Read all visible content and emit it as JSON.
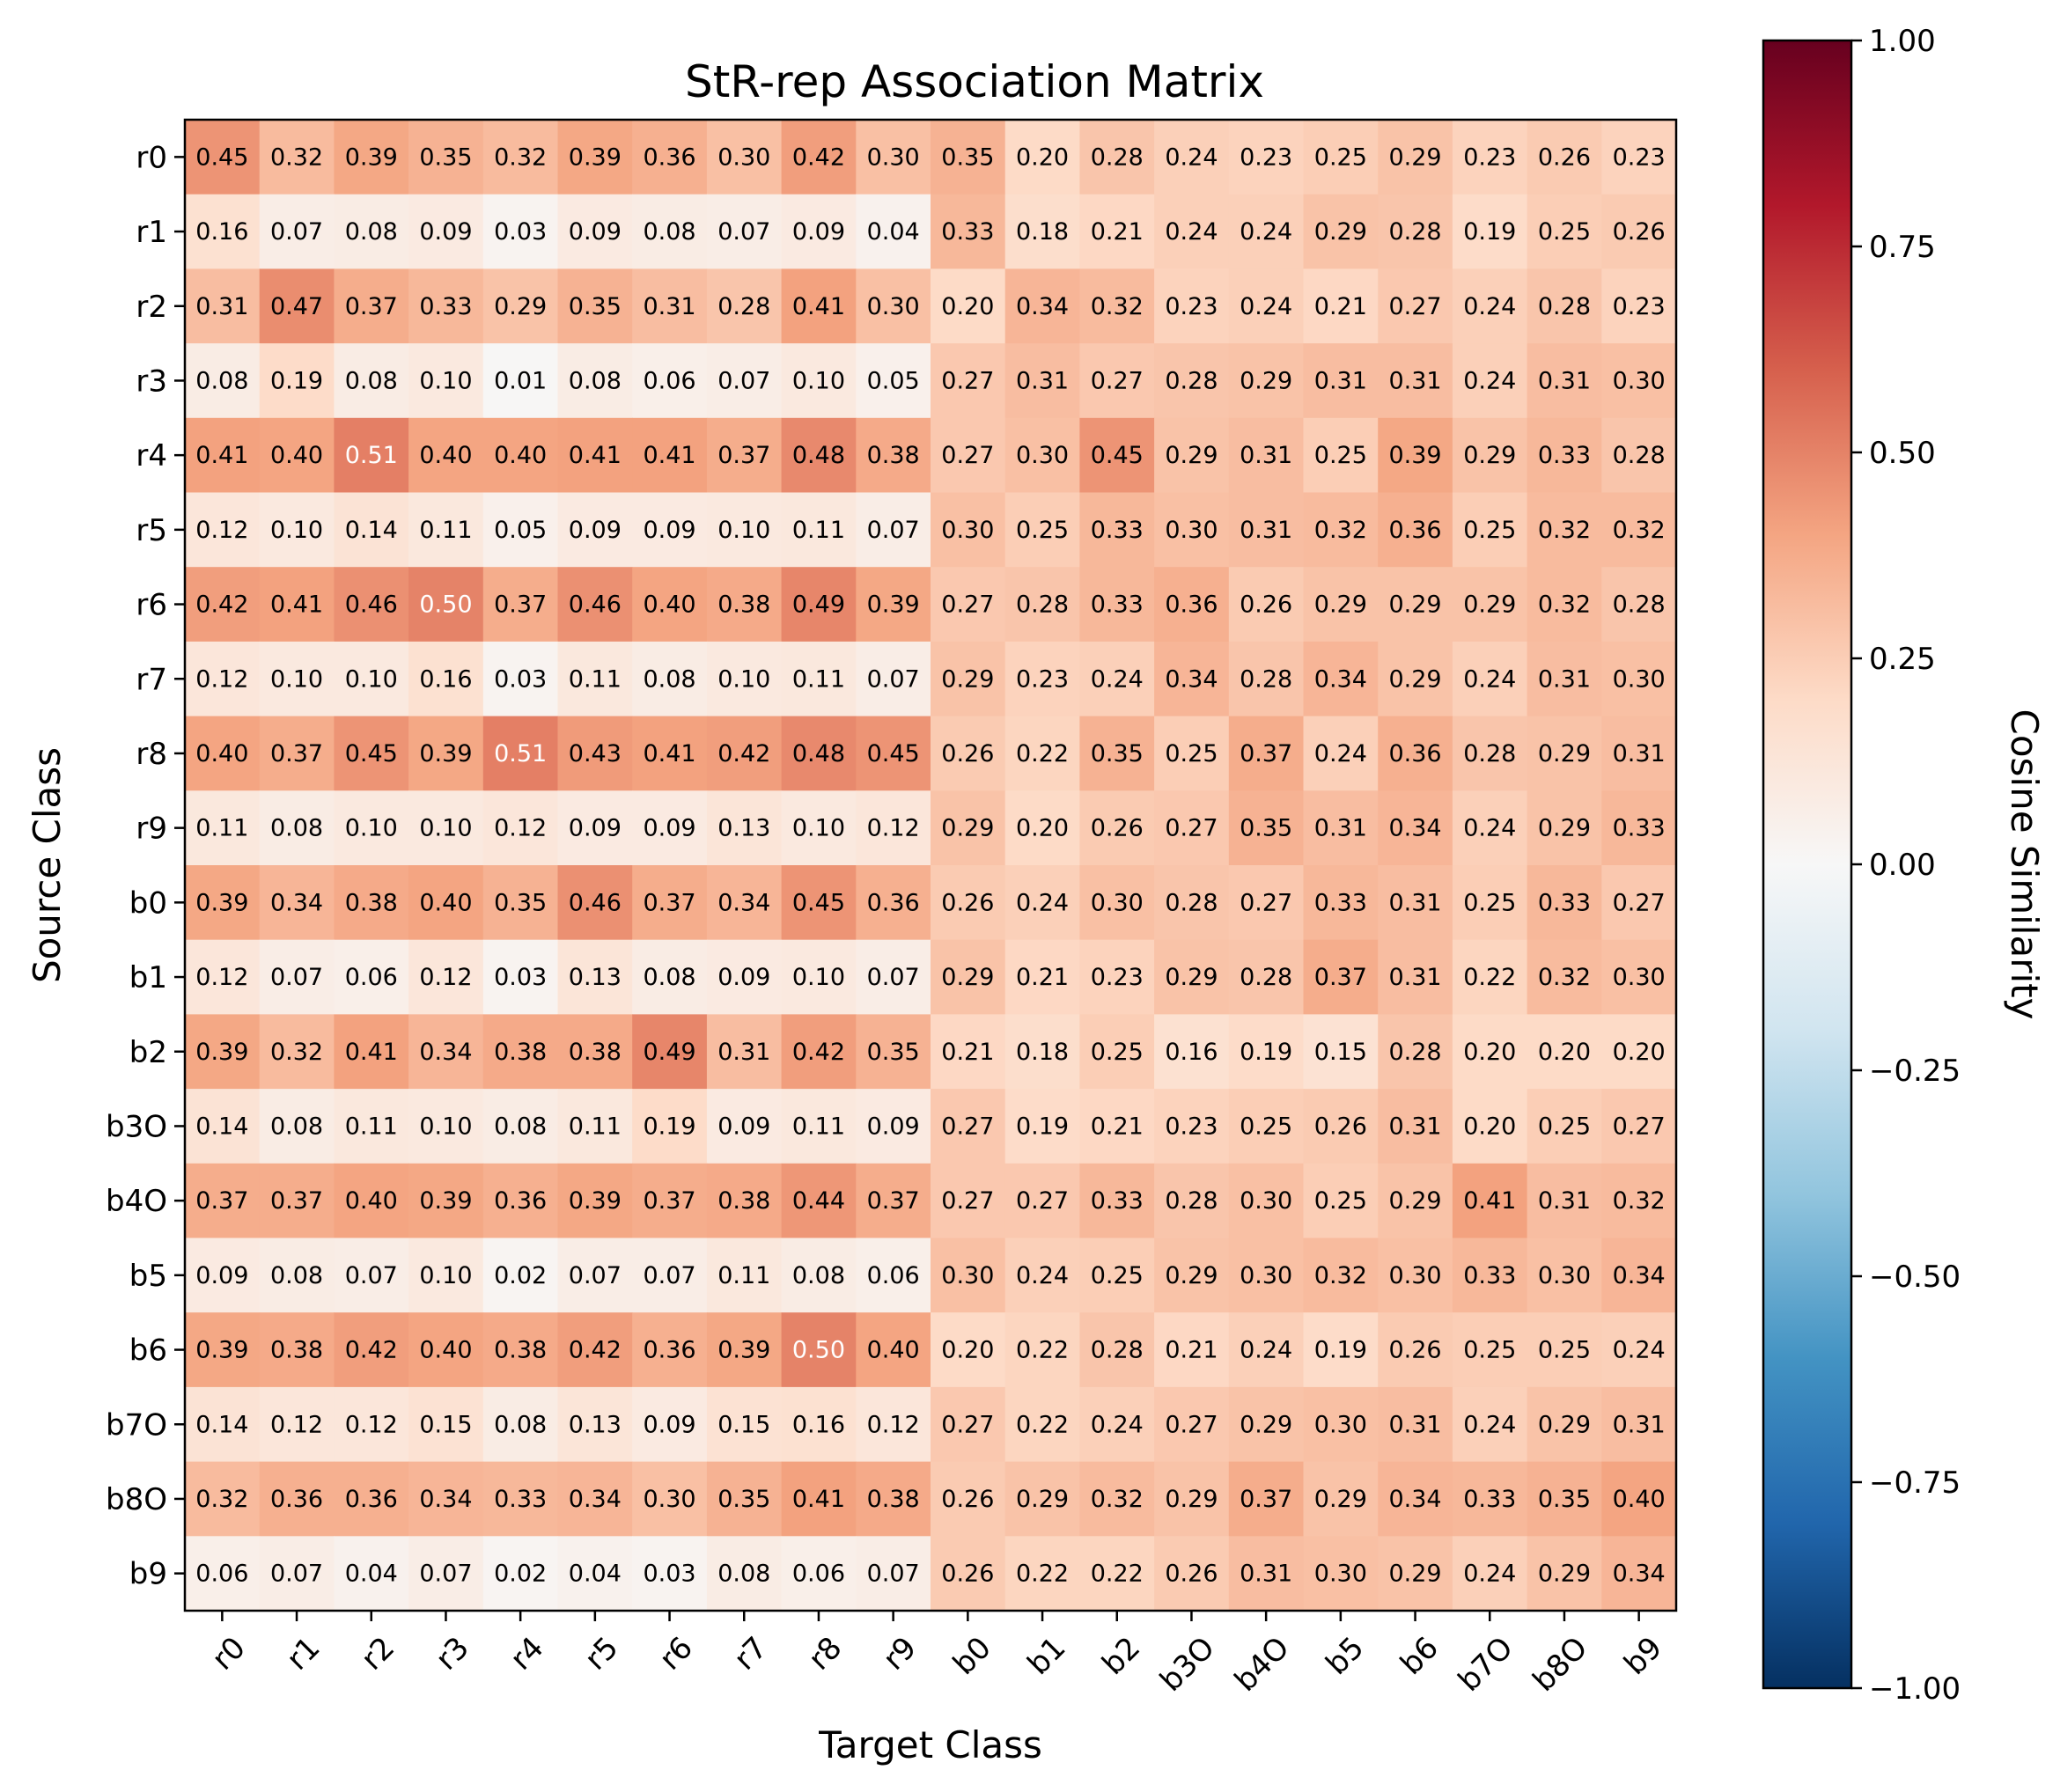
{
  "chart_data": {
    "type": "heatmap",
    "title": "StR-rep Association Matrix",
    "xlabel": "Target Class",
    "ylabel": "Source Class",
    "colorbar_label": "Cosine Similarity",
    "colormap": "RdBu_r",
    "vmin": -1.0,
    "vmax": 1.0,
    "colorbar_ticks": [
      "1.00",
      "0.75",
      "0.50",
      "0.25",
      "0.00",
      "−0.25",
      "−0.50",
      "−0.75",
      "−1.00"
    ],
    "colorbar_tick_values": [
      1.0,
      0.75,
      0.5,
      0.25,
      0.0,
      -0.25,
      -0.5,
      -0.75,
      -1.0
    ],
    "x_categories": [
      "r0",
      "r1",
      "r2",
      "r3",
      "r4",
      "r5",
      "r6",
      "r7",
      "r8",
      "r9",
      "b0",
      "b1",
      "b2",
      "b3O",
      "b4O",
      "b5",
      "b6",
      "b7O",
      "b8O",
      "b9"
    ],
    "y_categories": [
      "r0",
      "r1",
      "r2",
      "r3",
      "r4",
      "r5",
      "r6",
      "r7",
      "r8",
      "r9",
      "b0",
      "b1",
      "b2",
      "b3O",
      "b4O",
      "b5",
      "b6",
      "b7O",
      "b8O",
      "b9"
    ],
    "values": [
      [
        0.45,
        0.32,
        0.39,
        0.35,
        0.32,
        0.39,
        0.36,
        0.3,
        0.42,
        0.3,
        0.35,
        0.2,
        0.28,
        0.24,
        0.23,
        0.25,
        0.29,
        0.23,
        0.26,
        0.23
      ],
      [
        0.16,
        0.07,
        0.08,
        0.09,
        0.03,
        0.09,
        0.08,
        0.07,
        0.09,
        0.04,
        0.33,
        0.18,
        0.21,
        0.24,
        0.24,
        0.29,
        0.28,
        0.19,
        0.25,
        0.26
      ],
      [
        0.31,
        0.47,
        0.37,
        0.33,
        0.29,
        0.35,
        0.31,
        0.28,
        0.41,
        0.3,
        0.2,
        0.34,
        0.32,
        0.23,
        0.24,
        0.21,
        0.27,
        0.24,
        0.28,
        0.23
      ],
      [
        0.08,
        0.19,
        0.08,
        0.1,
        0.01,
        0.08,
        0.06,
        0.07,
        0.1,
        0.05,
        0.27,
        0.31,
        0.27,
        0.28,
        0.29,
        0.31,
        0.31,
        0.24,
        0.31,
        0.3
      ],
      [
        0.41,
        0.4,
        0.51,
        0.4,
        0.4,
        0.41,
        0.41,
        0.37,
        0.48,
        0.38,
        0.27,
        0.3,
        0.45,
        0.29,
        0.31,
        0.25,
        0.39,
        0.29,
        0.33,
        0.28
      ],
      [
        0.12,
        0.1,
        0.14,
        0.11,
        0.05,
        0.09,
        0.09,
        0.1,
        0.11,
        0.07,
        0.3,
        0.25,
        0.33,
        0.3,
        0.31,
        0.32,
        0.36,
        0.25,
        0.32,
        0.32
      ],
      [
        0.42,
        0.41,
        0.46,
        0.5,
        0.37,
        0.46,
        0.4,
        0.38,
        0.49,
        0.39,
        0.27,
        0.28,
        0.33,
        0.36,
        0.26,
        0.29,
        0.29,
        0.29,
        0.32,
        0.28
      ],
      [
        0.12,
        0.1,
        0.1,
        0.16,
        0.03,
        0.11,
        0.08,
        0.1,
        0.11,
        0.07,
        0.29,
        0.23,
        0.24,
        0.34,
        0.28,
        0.34,
        0.29,
        0.24,
        0.31,
        0.3
      ],
      [
        0.4,
        0.37,
        0.45,
        0.39,
        0.51,
        0.43,
        0.41,
        0.42,
        0.48,
        0.45,
        0.26,
        0.22,
        0.35,
        0.25,
        0.37,
        0.24,
        0.36,
        0.28,
        0.29,
        0.31
      ],
      [
        0.11,
        0.08,
        0.1,
        0.1,
        0.12,
        0.09,
        0.09,
        0.13,
        0.1,
        0.12,
        0.29,
        0.2,
        0.26,
        0.27,
        0.35,
        0.31,
        0.34,
        0.24,
        0.29,
        0.33
      ],
      [
        0.39,
        0.34,
        0.38,
        0.4,
        0.35,
        0.46,
        0.37,
        0.34,
        0.45,
        0.36,
        0.26,
        0.24,
        0.3,
        0.28,
        0.27,
        0.33,
        0.31,
        0.25,
        0.33,
        0.27
      ],
      [
        0.12,
        0.07,
        0.06,
        0.12,
        0.03,
        0.13,
        0.08,
        0.09,
        0.1,
        0.07,
        0.29,
        0.21,
        0.23,
        0.29,
        0.28,
        0.37,
        0.31,
        0.22,
        0.32,
        0.3
      ],
      [
        0.39,
        0.32,
        0.41,
        0.34,
        0.38,
        0.38,
        0.49,
        0.31,
        0.42,
        0.35,
        0.21,
        0.18,
        0.25,
        0.16,
        0.19,
        0.15,
        0.28,
        0.2,
        0.2,
        0.2
      ],
      [
        0.14,
        0.08,
        0.11,
        0.1,
        0.08,
        0.11,
        0.19,
        0.09,
        0.11,
        0.09,
        0.27,
        0.19,
        0.21,
        0.23,
        0.25,
        0.26,
        0.31,
        0.2,
        0.25,
        0.27
      ],
      [
        0.37,
        0.37,
        0.4,
        0.39,
        0.36,
        0.39,
        0.37,
        0.38,
        0.44,
        0.37,
        0.27,
        0.27,
        0.33,
        0.28,
        0.3,
        0.25,
        0.29,
        0.41,
        0.31,
        0.32
      ],
      [
        0.09,
        0.08,
        0.07,
        0.1,
        0.02,
        0.07,
        0.07,
        0.11,
        0.08,
        0.06,
        0.3,
        0.24,
        0.25,
        0.29,
        0.3,
        0.32,
        0.3,
        0.33,
        0.3,
        0.34
      ],
      [
        0.39,
        0.38,
        0.42,
        0.4,
        0.38,
        0.42,
        0.36,
        0.39,
        0.5,
        0.4,
        0.2,
        0.22,
        0.28,
        0.21,
        0.24,
        0.19,
        0.26,
        0.25,
        0.25,
        0.24
      ],
      [
        0.14,
        0.12,
        0.12,
        0.15,
        0.08,
        0.13,
        0.09,
        0.15,
        0.16,
        0.12,
        0.27,
        0.22,
        0.24,
        0.27,
        0.29,
        0.3,
        0.31,
        0.24,
        0.29,
        0.31
      ],
      [
        0.32,
        0.36,
        0.36,
        0.34,
        0.33,
        0.34,
        0.3,
        0.35,
        0.41,
        0.38,
        0.26,
        0.29,
        0.32,
        0.29,
        0.37,
        0.29,
        0.34,
        0.33,
        0.35,
        0.4
      ],
      [
        0.06,
        0.07,
        0.04,
        0.07,
        0.02,
        0.04,
        0.03,
        0.08,
        0.06,
        0.07,
        0.26,
        0.22,
        0.22,
        0.26,
        0.31,
        0.3,
        0.29,
        0.24,
        0.29,
        0.34
      ]
    ]
  }
}
